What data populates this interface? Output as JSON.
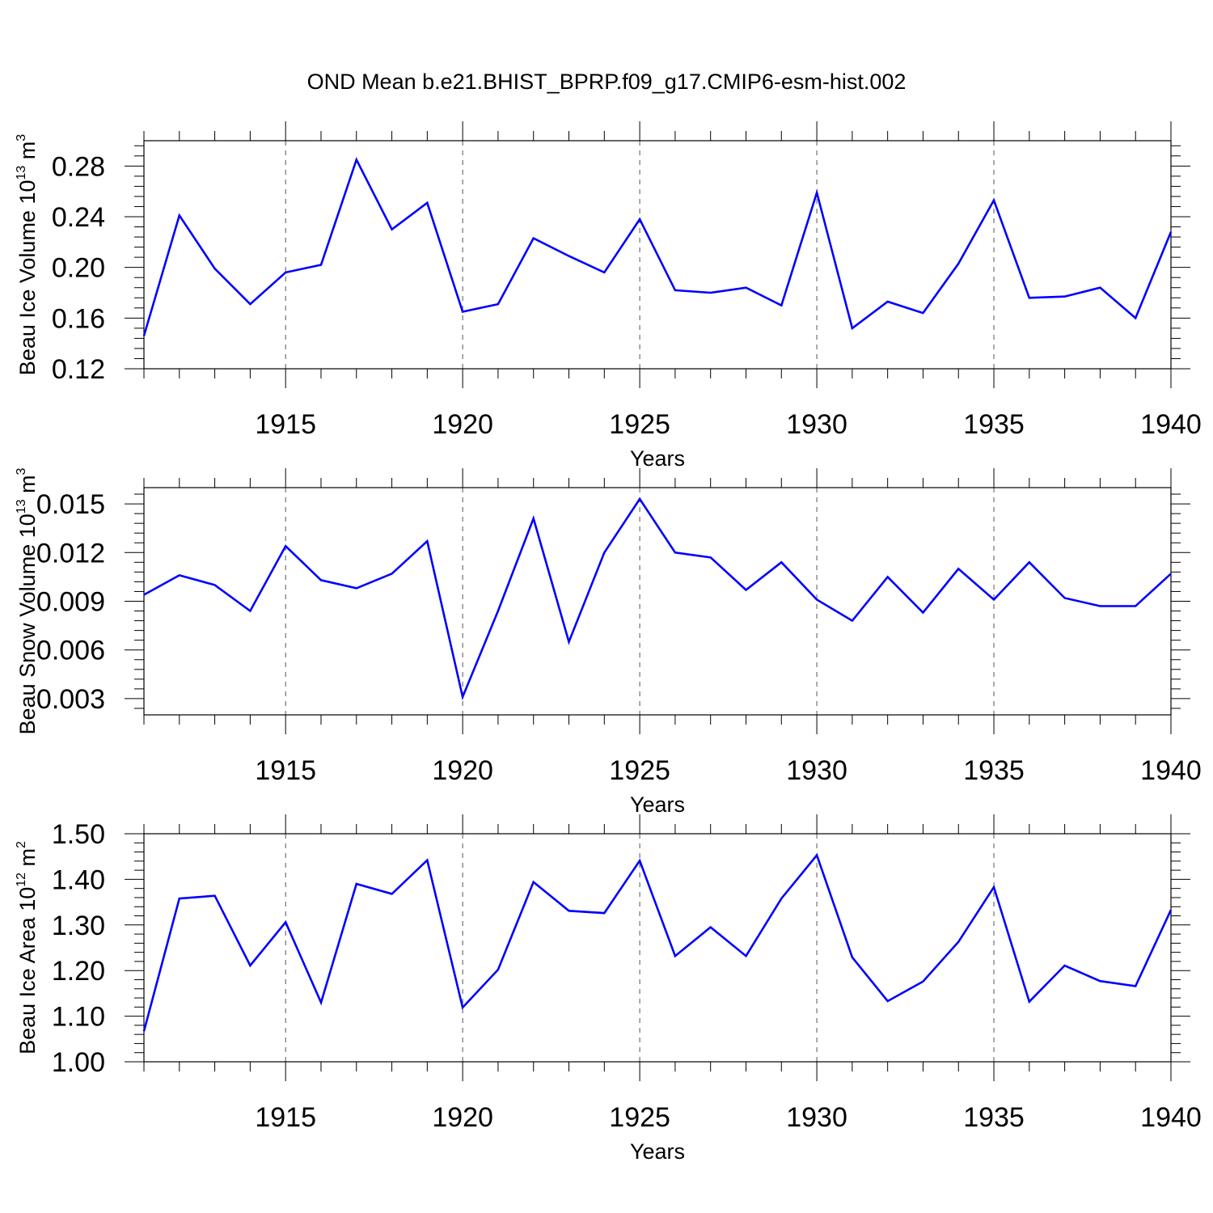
{
  "title": "OND Mean b.e21.BHIST_BPRP.f09_g17.CMIP6-esm-hist.002",
  "colors": {
    "series": "#0000ff",
    "axis": "#000000",
    "grid": "#555555",
    "background": "#ffffff"
  },
  "chart_data": [
    {
      "type": "line",
      "xlabel": "Years",
      "ylabel": {
        "text": "Beau Ice Volume 10",
        "exp": "13",
        "unit": " m",
        "unit_exp": "3"
      },
      "xlim": [
        1911,
        1940
      ],
      "ylim": [
        0.12,
        0.3
      ],
      "xticks": [
        "1915",
        "1920",
        "1925",
        "1930",
        "1935",
        "1940"
      ],
      "yticks": [
        "0.12",
        "0.16",
        "0.20",
        "0.24",
        "0.28"
      ],
      "grid": "vertical dashed at labeled years",
      "x": [
        1911,
        1912,
        1913,
        1914,
        1915,
        1916,
        1917,
        1918,
        1919,
        1920,
        1921,
        1922,
        1923,
        1924,
        1925,
        1926,
        1927,
        1928,
        1929,
        1930,
        1931,
        1932,
        1933,
        1934,
        1935,
        1936,
        1937,
        1938,
        1939,
        1940
      ],
      "values": [
        0.146,
        0.241,
        0.199,
        0.171,
        0.196,
        0.202,
        0.285,
        0.23,
        0.251,
        0.165,
        0.171,
        0.223,
        0.209,
        0.196,
        0.238,
        0.182,
        0.18,
        0.184,
        0.17,
        0.259,
        0.152,
        0.173,
        0.164,
        0.203,
        0.253,
        0.176,
        0.177,
        0.184,
        0.16,
        0.228
      ]
    },
    {
      "type": "line",
      "xlabel": "Years",
      "ylabel": {
        "text": "Beau Snow Volume 10",
        "exp": "13",
        "unit": " m",
        "unit_exp": "3"
      },
      "xlim": [
        1911,
        1940
      ],
      "ylim": [
        0.002,
        0.016
      ],
      "xticks": [
        "1915",
        "1920",
        "1925",
        "1930",
        "1935",
        "1940"
      ],
      "yticks": [
        "0.003",
        "0.006",
        "0.009",
        "0.012",
        "0.015"
      ],
      "grid": "vertical dashed at labeled years",
      "x": [
        1911,
        1912,
        1913,
        1914,
        1915,
        1916,
        1917,
        1918,
        1919,
        1920,
        1921,
        1922,
        1923,
        1924,
        1925,
        1926,
        1927,
        1928,
        1929,
        1930,
        1931,
        1932,
        1933,
        1934,
        1935,
        1936,
        1937,
        1938,
        1939,
        1940
      ],
      "values": [
        0.0094,
        0.0106,
        0.01,
        0.0084,
        0.0124,
        0.0103,
        0.0098,
        0.0107,
        0.0127,
        0.0031,
        0.0084,
        0.0141,
        0.0065,
        0.012,
        0.0153,
        0.012,
        0.0117,
        0.0097,
        0.0114,
        0.0091,
        0.0078,
        0.0105,
        0.0083,
        0.011,
        0.0091,
        0.0114,
        0.0092,
        0.0087,
        0.0087,
        0.0107
      ]
    },
    {
      "type": "line",
      "xlabel": "Years",
      "ylabel": {
        "text": "Beau Ice Area 10",
        "exp": "12",
        "unit": " m",
        "unit_exp": "2"
      },
      "xlim": [
        1911,
        1940
      ],
      "ylim": [
        1.0,
        1.5
      ],
      "xticks": [
        "1915",
        "1920",
        "1925",
        "1930",
        "1935",
        "1940"
      ],
      "yticks": [
        "1.00",
        "1.10",
        "1.20",
        "1.30",
        "1.40",
        "1.50"
      ],
      "grid": "vertical dashed at labeled years",
      "x": [
        1911,
        1912,
        1913,
        1914,
        1915,
        1916,
        1917,
        1918,
        1919,
        1920,
        1921,
        1922,
        1923,
        1924,
        1925,
        1926,
        1927,
        1928,
        1929,
        1930,
        1931,
        1932,
        1933,
        1934,
        1935,
        1936,
        1937,
        1938,
        1939,
        1940
      ],
      "values": [
        1.067,
        1.358,
        1.364,
        1.211,
        1.306,
        1.13,
        1.39,
        1.368,
        1.442,
        1.119,
        1.202,
        1.394,
        1.331,
        1.326,
        1.441,
        1.232,
        1.295,
        1.232,
        1.358,
        1.453,
        1.229,
        1.133,
        1.176,
        1.263,
        1.383,
        1.132,
        1.211,
        1.177,
        1.166,
        1.333
      ]
    }
  ]
}
